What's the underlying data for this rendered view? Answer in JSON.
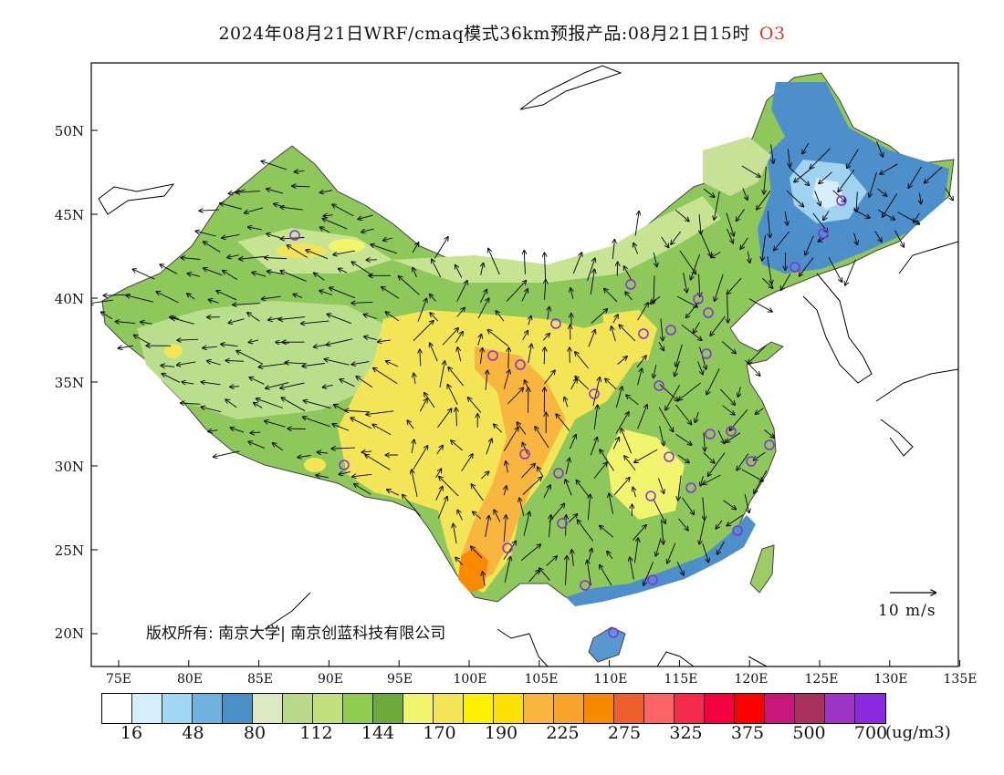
{
  "header": {
    "title": "2024年08月21日WRF/cmaq模式36km预报产品:08月21日15时",
    "pollutant": "O3"
  },
  "map": {
    "lat_labels": [
      "50N",
      "45N",
      "40N",
      "35N",
      "30N",
      "25N",
      "20N"
    ],
    "lon_labels": [
      "75E",
      "80E",
      "85E",
      "90E",
      "95E",
      "100E",
      "105E",
      "110E",
      "115E",
      "120E",
      "125E",
      "130E",
      "135E"
    ],
    "copyright": "版权所有: 南京大学| 南京创蓝科技有限公司",
    "wind_scale_label": "10 m/s",
    "station_marker_color": "#8a2be2"
  },
  "legend": {
    "colors": [
      "#ffffff",
      "#d4eefb",
      "#a0d8f2",
      "#6eb3e0",
      "#4a8fc7",
      "#dde9c2",
      "#b8d98a",
      "#c3e07f",
      "#8fcb4f",
      "#6eaa3a",
      "#f2f46e",
      "#f3e556",
      "#fef100",
      "#fce100",
      "#f8b63f",
      "#f8a32a",
      "#f88a00",
      "#ef5f2e",
      "#fc6467",
      "#f52b4d",
      "#f5003e",
      "#ff0000",
      "#c8177a",
      "#a8305c",
      "#9c34c6",
      "#8a2be2"
    ],
    "tick_labels": [
      "16",
      "48",
      "80",
      "112",
      "144",
      "170",
      "190",
      "225",
      "275",
      "325",
      "375",
      "500",
      "700"
    ],
    "unit": "(ug/m3)"
  }
}
